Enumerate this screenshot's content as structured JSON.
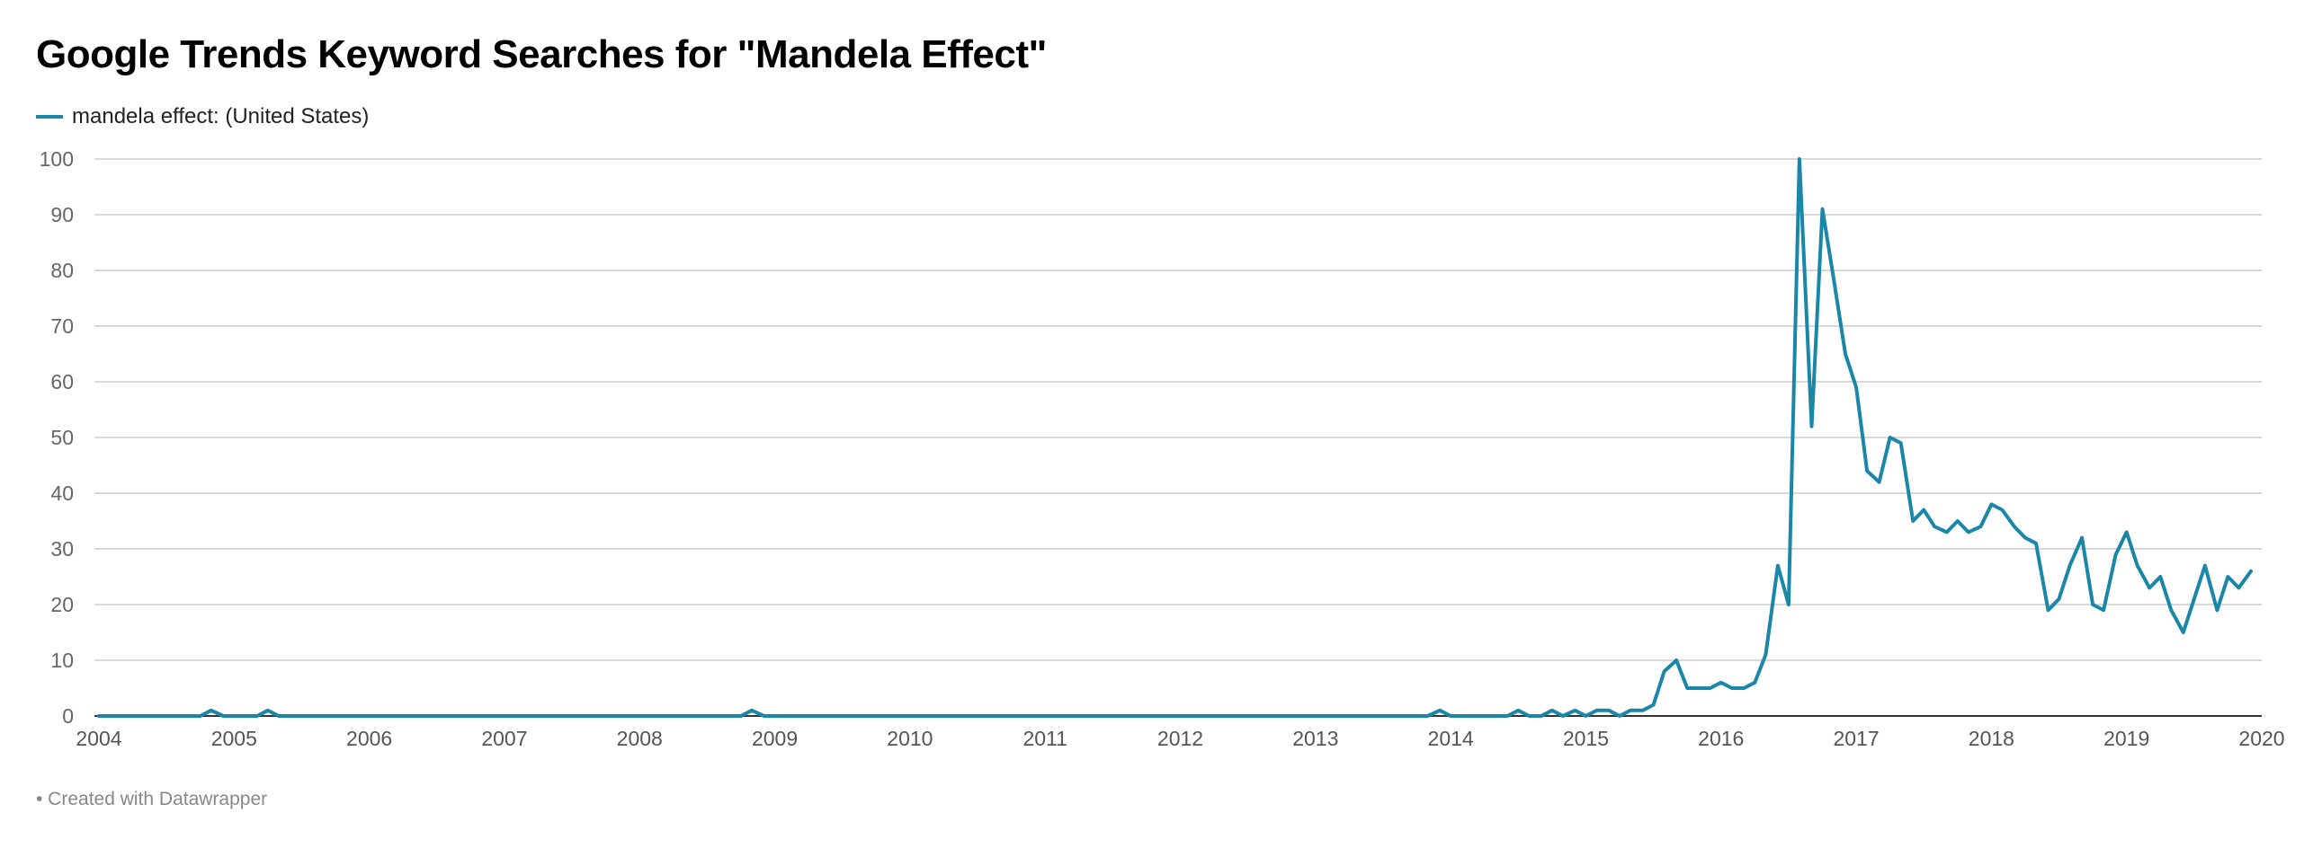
{
  "chart_data": {
    "type": "line",
    "title": "Google Trends Keyword Searches for \"Mandela Effect\"",
    "footer": "• Created with Datawrapper",
    "xlabel": "",
    "ylabel": "",
    "xlim": [
      2004,
      2020
    ],
    "ylim": [
      0,
      100
    ],
    "y_ticks": [
      0,
      10,
      20,
      30,
      40,
      50,
      60,
      70,
      80,
      90,
      100
    ],
    "x_ticks": [
      2004,
      2005,
      2006,
      2007,
      2008,
      2009,
      2010,
      2011,
      2012,
      2013,
      2014,
      2015,
      2016,
      2017,
      2018,
      2019,
      2020
    ],
    "grid": true,
    "legend_position": "top-left",
    "colors": {
      "line": "#1a86a8",
      "grid": "#d9d9d9",
      "axis": "#333333"
    },
    "series": [
      {
        "name": "mandela effect: (United States)",
        "points": [
          [
            2004.0,
            0
          ],
          [
            2004.75,
            0
          ],
          [
            2004.83,
            1
          ],
          [
            2004.92,
            0
          ],
          [
            2005.17,
            0
          ],
          [
            2005.25,
            1
          ],
          [
            2005.33,
            0
          ],
          [
            2008.75,
            0
          ],
          [
            2008.83,
            1
          ],
          [
            2008.92,
            0
          ],
          [
            2013.83,
            0
          ],
          [
            2013.92,
            1
          ],
          [
            2014.0,
            0
          ],
          [
            2014.42,
            0
          ],
          [
            2014.5,
            1
          ],
          [
            2014.58,
            0
          ],
          [
            2014.67,
            0
          ],
          [
            2014.75,
            1
          ],
          [
            2014.83,
            0
          ],
          [
            2014.92,
            1
          ],
          [
            2015.0,
            0
          ],
          [
            2015.08,
            1
          ],
          [
            2015.17,
            1
          ],
          [
            2015.25,
            0
          ],
          [
            2015.33,
            1
          ],
          [
            2015.42,
            1
          ],
          [
            2015.5,
            2
          ],
          [
            2015.58,
            8
          ],
          [
            2015.67,
            10
          ],
          [
            2015.75,
            5
          ],
          [
            2015.83,
            5
          ],
          [
            2015.92,
            5
          ],
          [
            2016.0,
            6
          ],
          [
            2016.08,
            5
          ],
          [
            2016.17,
            5
          ],
          [
            2016.25,
            6
          ],
          [
            2016.33,
            11
          ],
          [
            2016.42,
            27
          ],
          [
            2016.5,
            20
          ],
          [
            2016.58,
            100
          ],
          [
            2016.67,
            52
          ],
          [
            2016.75,
            91
          ],
          [
            2016.83,
            79
          ],
          [
            2016.92,
            65
          ],
          [
            2017.0,
            59
          ],
          [
            2017.08,
            44
          ],
          [
            2017.17,
            42
          ],
          [
            2017.25,
            50
          ],
          [
            2017.33,
            49
          ],
          [
            2017.42,
            35
          ],
          [
            2017.5,
            37
          ],
          [
            2017.58,
            34
          ],
          [
            2017.67,
            33
          ],
          [
            2017.75,
            35
          ],
          [
            2017.83,
            33
          ],
          [
            2017.92,
            34
          ],
          [
            2018.0,
            38
          ],
          [
            2018.08,
            37
          ],
          [
            2018.17,
            34
          ],
          [
            2018.25,
            32
          ],
          [
            2018.33,
            31
          ],
          [
            2018.42,
            19
          ],
          [
            2018.5,
            21
          ],
          [
            2018.58,
            27
          ],
          [
            2018.67,
            32
          ],
          [
            2018.75,
            20
          ],
          [
            2018.83,
            19
          ],
          [
            2018.92,
            29
          ],
          [
            2019.0,
            33
          ],
          [
            2019.08,
            27
          ],
          [
            2019.17,
            23
          ],
          [
            2019.25,
            25
          ],
          [
            2019.33,
            19
          ],
          [
            2019.42,
            15
          ],
          [
            2019.5,
            21
          ],
          [
            2019.58,
            27
          ],
          [
            2019.67,
            19
          ],
          [
            2019.75,
            25
          ],
          [
            2019.83,
            23
          ],
          [
            2019.92,
            26
          ]
        ]
      }
    ]
  }
}
